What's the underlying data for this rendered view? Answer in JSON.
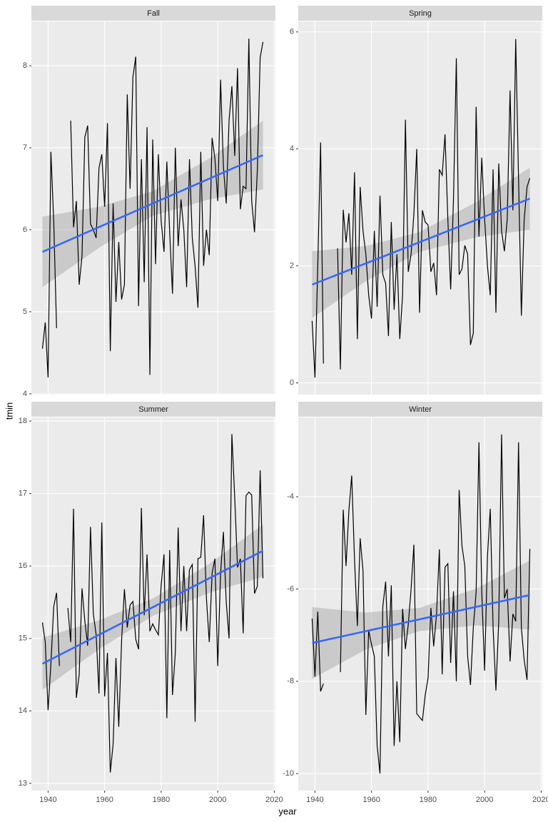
{
  "x_label": "year",
  "y_label": "tmin",
  "chart_data": [
    {
      "type": "line",
      "title": "Fall",
      "color": "#000000",
      "grid": true,
      "xlim": [
        1934.1,
        2020.4
      ],
      "ylim": [
        3.99,
        8.54
      ],
      "xticks": [
        1940,
        1960,
        1980,
        2000,
        2020
      ],
      "yticks": [
        4,
        5,
        6,
        7,
        8
      ],
      "x": [
        1938,
        1939,
        1940,
        1941,
        1942,
        1943,
        1944,
        1945,
        1946,
        1947,
        1948,
        1949,
        1950,
        1951,
        1952,
        1953,
        1954,
        1955,
        1956,
        1957,
        1958,
        1959,
        1960,
        1961,
        1962,
        1963,
        1964,
        1965,
        1966,
        1967,
        1968,
        1969,
        1970,
        1971,
        1972,
        1973,
        1974,
        1975,
        1976,
        1977,
        1978,
        1979,
        1980,
        1981,
        1982,
        1983,
        1984,
        1985,
        1986,
        1987,
        1988,
        1989,
        1990,
        1991,
        1992,
        1993,
        1994,
        1995,
        1996,
        1997,
        1998,
        1999,
        2000,
        2001,
        2002,
        2003,
        2004,
        2005,
        2006,
        2007,
        2008,
        2009,
        2010,
        2011,
        2012,
        2013,
        2014,
        2015,
        2016
      ],
      "values": [
        4.55,
        4.87,
        4.2,
        6.95,
        6.1,
        4.8,
        null,
        null,
        null,
        null,
        7.33,
        6.03,
        6.35,
        5.33,
        5.68,
        7.13,
        7.27,
        6.07,
        6.0,
        5.9,
        6.75,
        6.92,
        6.28,
        7.3,
        4.52,
        6.32,
        5.12,
        5.85,
        5.15,
        5.33,
        7.65,
        6.5,
        7.86,
        8.11,
        5.07,
        6.86,
        5.36,
        7.25,
        4.23,
        7.1,
        5.58,
        6.92,
        6.1,
        5.73,
        6.83,
        5.97,
        5.22,
        7.0,
        5.8,
        6.37,
        6.0,
        5.3,
        6.86,
        5.9,
        5.55,
        5.05,
        6.95,
        5.56,
        6.0,
        5.69,
        7.12,
        6.87,
        6.35,
        7.83,
        6.77,
        6.32,
        7.33,
        7.75,
        6.9,
        7.97,
        6.25,
        6.53,
        6.5,
        8.33,
        6.35,
        5.97,
        6.72,
        8.1,
        8.29
      ],
      "trend": {
        "color": "#3366ff",
        "x": [
          1938,
          2016
        ],
        "values": [
          5.73,
          6.91
        ]
      },
      "ribbon": {
        "color": "#999999",
        "x": [
          1938,
          1958,
          1977,
          1997,
          2016
        ],
        "lower": [
          5.3,
          5.78,
          6.17,
          6.37,
          6.49
        ],
        "upper": [
          6.16,
          6.28,
          6.47,
          6.87,
          7.33
        ]
      }
    },
    {
      "type": "line",
      "title": "Spring",
      "color": "#000000",
      "grid": true,
      "xlim": [
        1934.1,
        2020.4
      ],
      "ylim": [
        -0.2,
        6.18
      ],
      "xticks": [
        1940,
        1960,
        1980,
        2000,
        2020
      ],
      "yticks": [
        0,
        2,
        4,
        6
      ],
      "x": [
        1938,
        1939,
        1940,
        1941,
        1942,
        1943,
        1944,
        1945,
        1946,
        1947,
        1948,
        1949,
        1950,
        1951,
        1952,
        1953,
        1954,
        1955,
        1956,
        1957,
        1958,
        1959,
        1960,
        1961,
        1962,
        1963,
        1964,
        1965,
        1966,
        1967,
        1968,
        1969,
        1970,
        1971,
        1972,
        1973,
        1974,
        1975,
        1976,
        1977,
        1978,
        1979,
        1980,
        1981,
        1982,
        1983,
        1984,
        1985,
        1986,
        1987,
        1988,
        1989,
        1990,
        1991,
        1992,
        1993,
        1994,
        1995,
        1996,
        1997,
        1998,
        1999,
        2000,
        2001,
        2002,
        2003,
        2004,
        2005,
        2006,
        2007,
        2008,
        2009,
        2010,
        2011,
        2012,
        2013,
        2014,
        2015,
        2016
      ],
      "values": [
        null,
        1.06,
        0.09,
        2.0,
        4.11,
        0.33,
        null,
        null,
        null,
        null,
        2.3,
        0.23,
        2.96,
        2.4,
        2.9,
        1.85,
        3.6,
        0.75,
        3.35,
        2.6,
        2.2,
        1.5,
        1.1,
        2.6,
        1.3,
        3.2,
        1.85,
        1.7,
        0.8,
        2.75,
        1.25,
        2.2,
        0.75,
        1.5,
        4.5,
        1.9,
        2.2,
        2.9,
        4.0,
        1.2,
        2.95,
        2.75,
        2.7,
        1.9,
        2.05,
        1.5,
        3.65,
        3.55,
        4.25,
        2.8,
        1.6,
        3.15,
        5.55,
        1.85,
        1.95,
        2.35,
        2.2,
        0.65,
        0.85,
        4.72,
        2.5,
        3.85,
        2.8,
        2.0,
        1.5,
        3.65,
        1.2,
        3.75,
        2.6,
        2.25,
        2.8,
        5.0,
        2.95,
        5.88,
        3.5,
        1.15,
        2.8,
        3.35,
        3.5
      ],
      "trend": {
        "color": "#3366ff",
        "x": [
          1939,
          2016
        ],
        "values": [
          1.68,
          3.15
        ]
      },
      "ribbon": {
        "color": "#999999",
        "x": [
          1939,
          1958,
          1977,
          1997,
          2016
        ],
        "lower": [
          1.11,
          1.74,
          2.24,
          2.49,
          2.62
        ],
        "upper": [
          2.25,
          2.34,
          2.58,
          3.09,
          3.68
        ]
      }
    },
    {
      "type": "line",
      "title": "Summer",
      "color": "#000000",
      "grid": true,
      "xlim": [
        1934.1,
        2020.4
      ],
      "ylim": [
        12.9,
        18.05
      ],
      "xticks": [
        1940,
        1960,
        1980,
        2000,
        2020
      ],
      "yticks": [
        13,
        14,
        15,
        16,
        17,
        18
      ],
      "x": [
        1938,
        1939,
        1940,
        1941,
        1942,
        1943,
        1944,
        1945,
        1946,
        1947,
        1948,
        1949,
        1950,
        1951,
        1952,
        1953,
        1954,
        1955,
        1956,
        1957,
        1958,
        1959,
        1960,
        1961,
        1962,
        1963,
        1964,
        1965,
        1966,
        1967,
        1968,
        1969,
        1970,
        1971,
        1972,
        1973,
        1974,
        1975,
        1976,
        1977,
        1978,
        1979,
        1980,
        1981,
        1982,
        1983,
        1984,
        1985,
        1986,
        1987,
        1988,
        1989,
        1990,
        1991,
        1992,
        1993,
        1994,
        1995,
        1996,
        1997,
        1998,
        1999,
        2000,
        2001,
        2002,
        2003,
        2004,
        2005,
        2006,
        2007,
        2008,
        2009,
        2010,
        2011,
        2012,
        2013,
        2014,
        2015,
        2016
      ],
      "values": [
        15.22,
        14.95,
        14.01,
        14.65,
        15.44,
        15.63,
        14.62,
        null,
        null,
        15.42,
        14.95,
        16.79,
        14.18,
        14.5,
        15.69,
        15.24,
        14.9,
        16.54,
        15.34,
        15.05,
        14.24,
        16.6,
        14.2,
        14.8,
        13.15,
        13.54,
        14.73,
        13.78,
        14.97,
        15.68,
        15.15,
        15.46,
        15.51,
        14.99,
        14.85,
        16.8,
        15.32,
        16.16,
        15.1,
        15.2,
        15.12,
        15.05,
        15.74,
        16.16,
        13.9,
        16.22,
        14.22,
        14.8,
        16.53,
        15.1,
        16.0,
        15.1,
        15.95,
        16.02,
        13.85,
        16.1,
        16.12,
        16.7,
        15.55,
        14.95,
        15.9,
        16.1,
        14.62,
        15.9,
        16.47,
        15.5,
        15.0,
        17.82,
        16.95,
        15.98,
        16.1,
        15.07,
        16.97,
        17.02,
        16.98,
        15.62,
        15.72,
        17.32,
        15.83
      ],
      "trend": {
        "color": "#3366ff",
        "x": [
          1938,
          2016
        ],
        "values": [
          14.65,
          16.21
        ]
      },
      "ribbon": {
        "color": "#999999",
        "x": [
          1938,
          1958,
          1977,
          1997,
          2016
        ],
        "lower": [
          14.29,
          14.85,
          15.31,
          15.63,
          15.85
        ],
        "upper": [
          15.01,
          15.25,
          15.55,
          16.03,
          16.57
        ]
      }
    },
    {
      "type": "line",
      "title": "Winter",
      "color": "#000000",
      "grid": true,
      "xlim": [
        1934.1,
        2020.4
      ],
      "ylim": [
        -10.37,
        -2.28
      ],
      "xticks": [
        1940,
        1960,
        1980,
        2000,
        2020
      ],
      "yticks": [
        -10,
        -8,
        -6,
        -4
      ],
      "x": [
        1938,
        1939,
        1940,
        1941,
        1942,
        1943,
        1944,
        1945,
        1946,
        1947,
        1948,
        1949,
        1950,
        1951,
        1952,
        1953,
        1954,
        1955,
        1956,
        1957,
        1958,
        1959,
        1960,
        1961,
        1962,
        1963,
        1964,
        1965,
        1966,
        1967,
        1968,
        1969,
        1970,
        1971,
        1972,
        1973,
        1974,
        1975,
        1976,
        1977,
        1978,
        1979,
        1980,
        1981,
        1982,
        1983,
        1984,
        1985,
        1986,
        1987,
        1988,
        1989,
        1990,
        1991,
        1992,
        1993,
        1994,
        1995,
        1996,
        1997,
        1998,
        1999,
        2000,
        2001,
        2002,
        2003,
        2004,
        2005,
        2006,
        2007,
        2008,
        2009,
        2010,
        2011,
        2012,
        2013,
        2014,
        2015,
        2016
      ],
      "values": [
        null,
        -6.64,
        -7.9,
        -6.49,
        -8.22,
        -8.05,
        null,
        null,
        null,
        null,
        null,
        -7.8,
        -4.28,
        -5.5,
        -4.3,
        -3.54,
        -5.36,
        -6.8,
        -4.9,
        -5.6,
        -8.73,
        -6.9,
        -7.2,
        -7.46,
        -9.4,
        -10.0,
        -6.38,
        -5.84,
        -7.46,
        -5.92,
        -9.4,
        -8.0,
        -9.32,
        -6.43,
        -7.3,
        -6.77,
        -6.0,
        -5.04,
        -8.7,
        -8.78,
        -8.85,
        -8.3,
        -7.93,
        -6.41,
        -7.24,
        -6.54,
        -5.14,
        -7.85,
        -5.53,
        -5.45,
        -7.6,
        -6.05,
        -8.0,
        -3.85,
        -5.07,
        -5.5,
        -7.46,
        -8.08,
        -6.84,
        -6.07,
        -2.82,
        -6.07,
        -7.77,
        -5.3,
        -4.26,
        -6.84,
        -8.2,
        -6.7,
        -2.65,
        -6.2,
        -6.0,
        -7.57,
        -6.54,
        -6.7,
        -2.82,
        -6.84,
        -7.54,
        -7.97,
        -5.13
      ],
      "trend": {
        "color": "#3366ff",
        "x": [
          1939,
          2016
        ],
        "values": [
          -7.17,
          -6.13
        ]
      },
      "ribbon": {
        "color": "#999999",
        "x": [
          1939,
          1958,
          1977,
          1997,
          2016
        ],
        "lower": [
          -7.95,
          -7.31,
          -6.91,
          -6.79,
          -6.88
        ],
        "upper": [
          -6.39,
          -6.51,
          -6.41,
          -5.99,
          -5.38
        ]
      }
    }
  ]
}
